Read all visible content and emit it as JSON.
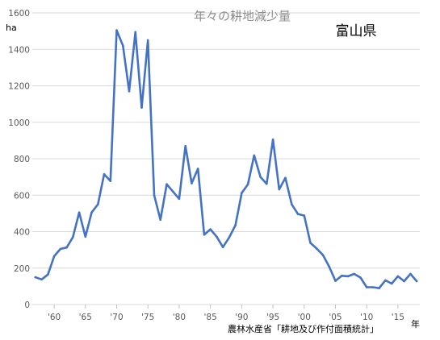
{
  "chart_data": {
    "type": "line",
    "title": "年々の耕地減少量",
    "region_label": "富山県",
    "ylabel": "ha",
    "xlabel": "年",
    "source": "農林水産省「耕地及び作付面積統計」",
    "ylim": [
      0,
      1600
    ],
    "yticks": [
      0,
      200,
      400,
      600,
      800,
      1000,
      1200,
      1400,
      1600
    ],
    "xlim": [
      1956.5,
      2018.5
    ],
    "xticks": [
      1960,
      1965,
      1970,
      1975,
      1980,
      1985,
      1990,
      1995,
      2000,
      2005,
      2010,
      2015
    ],
    "xtick_labels": [
      "'60",
      "'65",
      "'70",
      "'75",
      "'80",
      "'85",
      "'90",
      "'95",
      "'00",
      "'05",
      "'10",
      "'15"
    ],
    "grid": true,
    "color": "#4472c4",
    "series": [
      {
        "x": [
          1957,
          1958,
          1959,
          1960,
          1961,
          1962,
          1963,
          1964,
          1965,
          1966,
          1967,
          1968,
          1969,
          1970,
          1971,
          1972,
          1973,
          1974,
          1975,
          1976,
          1977,
          1978,
          1979,
          1980,
          1981,
          1982,
          1983,
          1984,
          1985,
          1986,
          1987,
          1988,
          1989,
          1990,
          1991,
          1992,
          1993,
          1994,
          1995,
          1996,
          1997,
          1998,
          1999,
          2000,
          2001,
          2002,
          2003,
          2004,
          2005,
          2006,
          2007,
          2008,
          2009,
          2010,
          2011,
          2012,
          2013,
          2014,
          2015,
          2016,
          2017,
          2018
        ],
        "values": [
          150,
          138,
          165,
          265,
          305,
          313,
          370,
          505,
          372,
          505,
          550,
          715,
          678,
          1505,
          1420,
          1170,
          1495,
          1080,
          1450,
          600,
          465,
          660,
          620,
          580,
          870,
          665,
          745,
          383,
          413,
          372,
          315,
          368,
          435,
          612,
          660,
          818,
          700,
          662,
          905,
          632,
          695,
          550,
          497,
          488,
          338,
          307,
          272,
          208,
          130,
          158,
          155,
          168,
          148,
          95,
          95,
          90,
          133,
          115,
          155,
          128,
          168,
          128
        ]
      }
    ]
  }
}
